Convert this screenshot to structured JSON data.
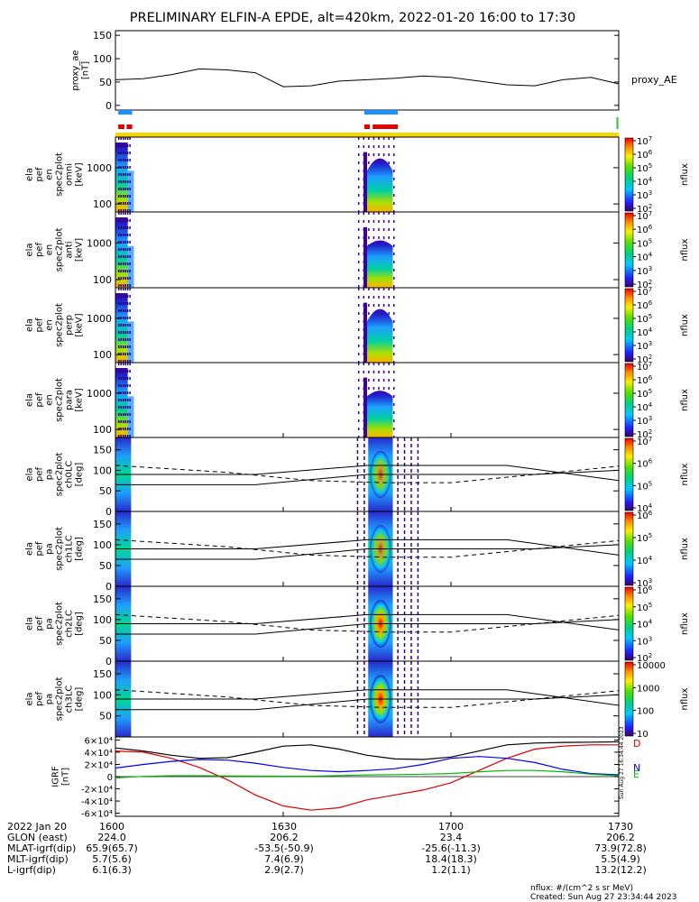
{
  "title": "PRELIMINARY ELFIN-A EPDE, alt=420km, 2022-01-20 16:00 to 17:30",
  "colors": {
    "bar_blue": "#1e90ff",
    "bar_red": "#e00000",
    "bar_yellow": "#f5d800",
    "bar_green": "#22cc22",
    "igrf_black": "#000000",
    "igrf_blue": "#0000ee",
    "igrf_green": "#00bb00",
    "igrf_red": "#dd0000"
  },
  "chart_data": [
    {
      "id": "proxy_ae",
      "type": "line",
      "ylabel": [
        "proxy_ae",
        "[nT]"
      ],
      "series_label": "proxy_AE",
      "ylim": [
        -10,
        160
      ],
      "yticks": [
        "0",
        "50",
        "100",
        "150"
      ],
      "x_minutes": [
        0,
        5,
        10,
        15,
        20,
        25,
        30,
        35,
        40,
        45,
        50,
        55,
        60,
        65,
        70,
        75,
        80,
        85,
        90
      ],
      "y": [
        55,
        57,
        66,
        78,
        76,
        70,
        40,
        42,
        52,
        55,
        58,
        63,
        60,
        52,
        44,
        42,
        55,
        60,
        46
      ]
    },
    {
      "id": "orbit_bars",
      "type": "other",
      "bars": [
        {
          "color": "blue",
          "x_ranges": [
            [
              0.5,
              3.0
            ],
            [
              44.5,
              50.5
            ]
          ]
        },
        {
          "color": "red",
          "x_ranges": [
            [
              0.5,
              1.6
            ],
            [
              2.0,
              3.0
            ],
            [
              44.5,
              45.5
            ],
            [
              46.0,
              50.5
            ]
          ]
        },
        {
          "color": "green",
          "x_ranges": [
            [
              89.6,
              89.9
            ]
          ]
        },
        {
          "color": "yellow",
          "x_ranges": [
            [
              0,
              90
            ]
          ]
        }
      ]
    },
    {
      "id": "spec_omni",
      "type": "heatmap",
      "ylabel": [
        "ela",
        "pef",
        "en",
        "spec2plot",
        "omni",
        "[keV]"
      ],
      "ylog": true,
      "ylim": [
        60,
        7000
      ],
      "yticks": [
        "100",
        "1000"
      ],
      "colorbar": {
        "label": "nflux",
        "ticks": [
          "10^2",
          "10^3",
          "10^4",
          "10^5",
          "10^6",
          "10^7"
        ]
      }
    },
    {
      "id": "spec_anti",
      "type": "heatmap",
      "ylabel": [
        "ela",
        "pef",
        "en",
        "spec2plot",
        "anti",
        "[keV]"
      ],
      "ylog": true,
      "ylim": [
        60,
        7000
      ],
      "yticks": [
        "100",
        "1000"
      ],
      "colorbar": {
        "label": "nflux",
        "ticks": [
          "10^2",
          "10^3",
          "10^4",
          "10^5",
          "10^6",
          "10^7"
        ]
      }
    },
    {
      "id": "spec_perp",
      "type": "heatmap",
      "ylabel": [
        "ela",
        "pef",
        "en",
        "spec2plot",
        "perp",
        "[keV]"
      ],
      "ylog": true,
      "ylim": [
        60,
        7000
      ],
      "yticks": [
        "100",
        "1000"
      ],
      "colorbar": {
        "label": "nflux",
        "ticks": [
          "10^2",
          "10^3",
          "10^4",
          "10^5",
          "10^6",
          "10^7"
        ]
      }
    },
    {
      "id": "spec_para",
      "type": "heatmap",
      "ylabel": [
        "ela",
        "pef",
        "en",
        "spec2plot",
        "para",
        "[keV]"
      ],
      "ylog": true,
      "ylim": [
        60,
        7000
      ],
      "yticks": [
        "100",
        "1000"
      ],
      "colorbar": {
        "label": "nflux",
        "ticks": [
          "10^2",
          "10^3",
          "10^4",
          "10^5",
          "10^6",
          "10^7"
        ]
      }
    },
    {
      "id": "pa_ch0",
      "type": "heatmap",
      "ylabel": [
        "ela",
        "pef",
        "pa",
        "spec2plot",
        "ch0LC",
        "[deg]"
      ],
      "ylim": [
        0,
        180
      ],
      "yticks": [
        "0",
        "50",
        "100",
        "150"
      ],
      "colorbar": {
        "label": "nflux",
        "ticks": [
          "10^4",
          "10^5",
          "10^6",
          "10^7"
        ]
      }
    },
    {
      "id": "pa_ch1",
      "type": "heatmap",
      "ylabel": [
        "ela",
        "pef",
        "pa",
        "spec2plot",
        "ch1LC",
        "[deg]"
      ],
      "ylim": [
        0,
        180
      ],
      "yticks": [
        "0",
        "50",
        "100",
        "150"
      ],
      "colorbar": {
        "label": "nflux",
        "ticks": [
          "10^3",
          "10^4",
          "10^5",
          "10^6"
        ]
      }
    },
    {
      "id": "pa_ch2",
      "type": "heatmap",
      "ylabel": [
        "ela",
        "pef",
        "pa",
        "spec2plot",
        "ch2LC",
        "[deg]"
      ],
      "ylim": [
        0,
        180
      ],
      "yticks": [
        "0",
        "50",
        "100",
        "150"
      ],
      "colorbar": {
        "label": "nflux",
        "ticks": [
          "10^2",
          "10^3",
          "10^4",
          "10^5",
          "10^6"
        ]
      }
    },
    {
      "id": "pa_ch3",
      "type": "heatmap",
      "ylabel": [
        "ela",
        "pef",
        "pa",
        "spec2plot",
        "ch3LC",
        "[deg]"
      ],
      "ylim": [
        0,
        180
      ],
      "yticks": [
        "50",
        "100",
        "150"
      ],
      "colorbar": {
        "label": "nflux",
        "ticks": [
          "10",
          "100",
          "1000",
          "10000"
        ]
      }
    },
    {
      "id": "igrf",
      "type": "line",
      "ylabel": [
        "IGRF",
        "[nT]"
      ],
      "ylim": [
        -65000,
        65000
      ],
      "yticks": [
        "-6×10⁴",
        "-4×10⁴",
        "-2×10⁴",
        "0",
        "2×10⁴",
        "4×10⁴",
        "6×10⁴"
      ],
      "legend": [
        "D",
        "N",
        "E"
      ],
      "x_minutes": [
        0,
        5,
        10,
        15,
        20,
        25,
        30,
        35,
        40,
        45,
        50,
        55,
        60,
        65,
        70,
        75,
        80,
        85,
        90
      ],
      "series": [
        {
          "name": "D",
          "values": [
            42000,
            40000,
            30000,
            15000,
            -5000,
            -30000,
            -48000,
            -55000,
            -51000,
            -38000,
            -30000,
            -22000,
            -10000,
            10000,
            30000,
            45000,
            50000,
            52000,
            52000
          ]
        },
        {
          "name": "N",
          "values": [
            14000,
            20000,
            25000,
            28000,
            27000,
            22000,
            15000,
            10000,
            8000,
            10000,
            13000,
            20000,
            30000,
            33000,
            30000,
            23000,
            12000,
            5000,
            3000
          ]
        },
        {
          "name": "E",
          "values": [
            -2000,
            500,
            1500,
            1500,
            1200,
            900,
            700,
            800,
            1800,
            2800,
            3200,
            4000,
            5000,
            8000,
            10000,
            10000,
            8000,
            4000,
            1500
          ]
        },
        {
          "name": "total",
          "values": [
            47000,
            42000,
            35000,
            30000,
            31000,
            40000,
            50000,
            52000,
            45000,
            35000,
            29000,
            28000,
            32000,
            42000,
            52000,
            55000,
            56000,
            56500,
            57000
          ]
        }
      ]
    }
  ],
  "x_axis": {
    "ticks": [
      "1600",
      "1630",
      "1700",
      "1730"
    ],
    "rows": [
      {
        "label": "2022 Jan 20",
        "values": [
          "1600",
          "1630",
          "1700",
          "1730"
        ]
      },
      {
        "label": "GLON (east)",
        "values": [
          "224.0",
          "206.2",
          "23.4",
          "206.2"
        ]
      },
      {
        "label": "MLAT-igrf(dip)",
        "values": [
          "65.9(65.7)",
          "-53.5(-50.9)",
          "-25.6(-11.3)",
          "73.9(72.8)"
        ]
      },
      {
        "label": "MLT-igrf(dip)",
        "values": [
          "5.7(5.6)",
          "7.4(6.9)",
          "18.4(18.3)",
          "5.5(4.9)"
        ]
      },
      {
        "label": "L-igrf(dip)",
        "values": [
          "6.1(6.3)",
          "2.9(2.7)",
          "1.2(1.1)",
          "13.2(12.2)"
        ]
      }
    ]
  },
  "footer": {
    "units": "nflux: #/(cm^2 s sr MeV)",
    "created": "Created: Sun Aug 27 23:34:44 2023",
    "side_stamp": "Sun Aug 27 16:34:44 2023"
  }
}
